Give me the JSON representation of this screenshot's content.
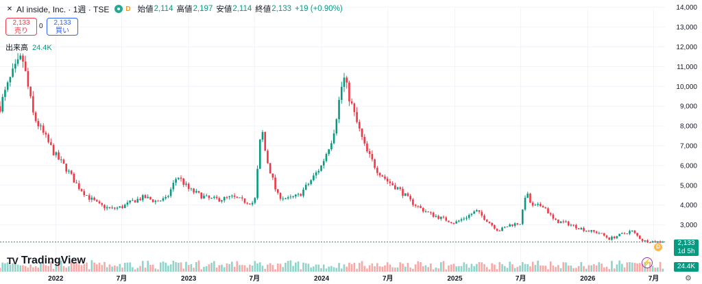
{
  "header": {
    "title": "AI inside, Inc. · 1週 · TSE",
    "data_badge": "D",
    "open_label": "始値",
    "open": "2,114",
    "high_label": "高値",
    "high": "2,197",
    "low_label": "安値",
    "low": "2,114",
    "close_label": "終値",
    "close": "2,133",
    "change": "+19 (+0.90%)"
  },
  "trade": {
    "sell_price": "2,133",
    "sell_label": "売り",
    "spread": "0",
    "buy_price": "2,133",
    "buy_label": "買い"
  },
  "volume": {
    "label": "出来高",
    "value": "24.4K"
  },
  "logo": {
    "mark": "TV",
    "text": "TradingView"
  },
  "price_badge": {
    "price": "2,133",
    "countdown": "1d 5h"
  },
  "volume_badge": "24.4K",
  "dividend_marker": "D",
  "colors": {
    "up": "#089981",
    "down": "#f23645",
    "up_vol": "#8fd3c9",
    "down_vol": "#f7a9a7"
  },
  "chart_data": {
    "type": "candlestick",
    "interval": "1W",
    "y_ticks": [
      3000,
      4000,
      5000,
      6000,
      7000,
      8000,
      9000,
      10000,
      11000,
      12000,
      13000,
      14000
    ],
    "y_tick_labels": [
      "3,000",
      "4,000",
      "5,000",
      "6,000",
      "7,000",
      "8,000",
      "9,000",
      "10,000",
      "11,000",
      "12,000",
      "13,000",
      "14,000"
    ],
    "x_labels": [
      {
        "label": "2022",
        "date": "2022-01"
      },
      {
        "label": "7月",
        "date": "2022-07"
      },
      {
        "label": "2023",
        "date": "2023-01"
      },
      {
        "label": "7月",
        "date": "2023-07"
      },
      {
        "label": "2024",
        "date": "2024-01"
      },
      {
        "label": "7月",
        "date": "2024-07"
      },
      {
        "label": "2025",
        "date": "2025-01"
      },
      {
        "label": "7月",
        "date": "2025-07"
      },
      {
        "label": "2026",
        "date": "2026-01"
      },
      {
        "label": "7月",
        "date": "2026-07"
      }
    ],
    "date_range": [
      "2021-08",
      "2026-08"
    ],
    "path": [
      [
        "2021-08",
        9000
      ],
      [
        "2021-09",
        10500
      ],
      [
        "2021-10",
        11500
      ],
      [
        "2021-11",
        8500
      ],
      [
        "2021-12",
        7500
      ],
      [
        "2022-01",
        6500
      ],
      [
        "2022-02",
        5800
      ],
      [
        "2022-03",
        5000
      ],
      [
        "2022-04",
        4400
      ],
      [
        "2022-05",
        4000
      ],
      [
        "2022-06",
        3800
      ],
      [
        "2022-07",
        3900
      ],
      [
        "2022-08",
        4200
      ],
      [
        "2022-09",
        4400
      ],
      [
        "2022-10",
        4200
      ],
      [
        "2022-11",
        4300
      ],
      [
        "2022-12",
        5500
      ],
      [
        "2023-01",
        4800
      ],
      [
        "2023-02",
        4500
      ],
      [
        "2023-03",
        4300
      ],
      [
        "2023-04",
        4300
      ],
      [
        "2023-05",
        4400
      ],
      [
        "2023-06",
        4200
      ],
      [
        "2023-07",
        4100
      ],
      [
        "2023-07-20",
        8000
      ],
      [
        "2023-08",
        6500
      ],
      [
        "2023-09",
        4500
      ],
      [
        "2023-10",
        4300
      ],
      [
        "2023-11",
        4500
      ],
      [
        "2023-12",
        5200
      ],
      [
        "2024-01",
        6000
      ],
      [
        "2024-02",
        7500
      ],
      [
        "2024-03",
        10500
      ],
      [
        "2024-04",
        8500
      ],
      [
        "2024-05",
        6800
      ],
      [
        "2024-06",
        5800
      ],
      [
        "2024-07",
        5200
      ],
      [
        "2024-08",
        4800
      ],
      [
        "2024-09",
        4200
      ],
      [
        "2024-10",
        3800
      ],
      [
        "2024-11",
        3500
      ],
      [
        "2024-12",
        3300
      ],
      [
        "2025-01",
        3100
      ],
      [
        "2025-02",
        3400
      ],
      [
        "2025-03",
        3700
      ],
      [
        "2025-04",
        3200
      ],
      [
        "2025-05",
        2700
      ],
      [
        "2025-06",
        3000
      ],
      [
        "2025-07",
        3100
      ],
      [
        "2025-07-15",
        4700
      ],
      [
        "2025-08",
        3900
      ],
      [
        "2025-09",
        4000
      ],
      [
        "2025-10",
        3200
      ],
      [
        "2025-11",
        3100
      ],
      [
        "2025-12",
        2900
      ],
      [
        "2026-01",
        2700
      ],
      [
        "2026-02",
        2600
      ],
      [
        "2026-03",
        2300
      ],
      [
        "2026-04",
        2500
      ],
      [
        "2026-05",
        2700
      ],
      [
        "2026-06",
        2200
      ],
      [
        "2026-07",
        2150
      ],
      [
        "2026-08",
        2133
      ]
    ],
    "last_candle": {
      "open": 2114,
      "high": 2197,
      "low": 2114,
      "close": 2133,
      "volume": 24400
    }
  }
}
